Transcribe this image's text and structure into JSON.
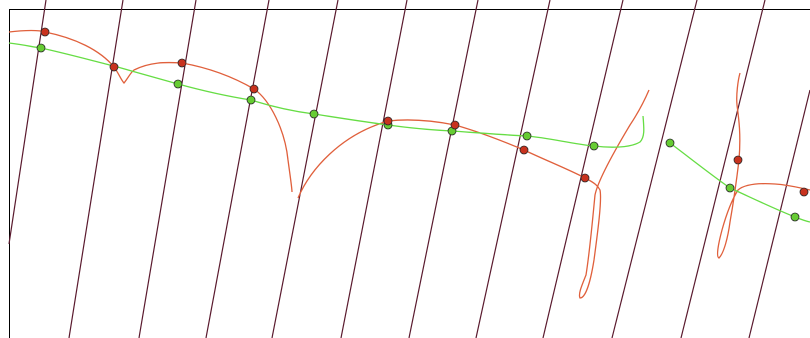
{
  "view": {
    "background": "#ffffff",
    "frame_color": "#000000",
    "grid_line_color": "#5a1a2e",
    "red_curve_color": "#e0603c",
    "green_curve_color": "#66dd44",
    "red_point_fill": "#c8321e",
    "green_point_fill": "#66cc33",
    "point_stroke": "#2a2a2a"
  }
}
